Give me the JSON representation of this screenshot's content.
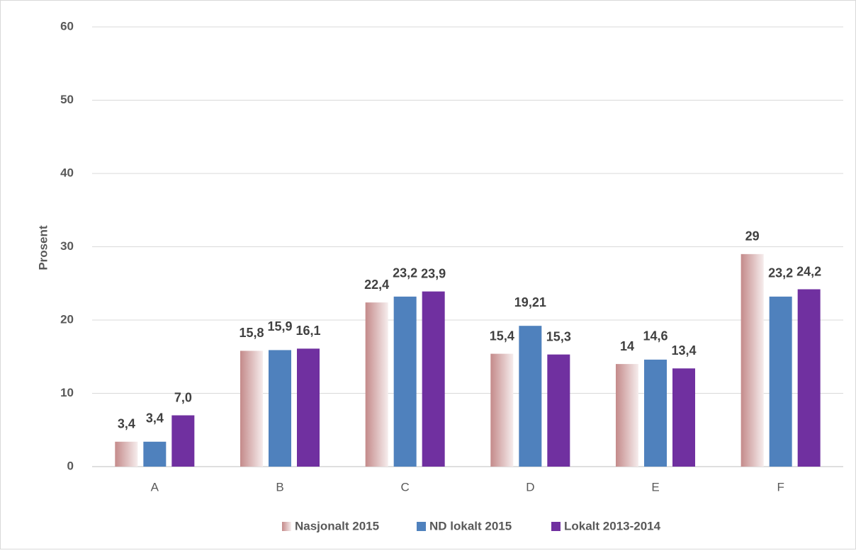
{
  "chart_data": {
    "type": "bar",
    "y_label": "Prosent",
    "categories": [
      "A",
      "B",
      "C",
      "D",
      "E",
      "F"
    ],
    "series": [
      {
        "name": "Nasjonalt 2015",
        "color": "#c48a8a",
        "values": [
          3.4,
          15.8,
          22.4,
          15.4,
          14,
          29
        ],
        "value_labels": [
          "3,4",
          "15,8",
          "22,4",
          "15,4",
          "14",
          "29"
        ]
      },
      {
        "name": "ND lokalt 2015",
        "color": "#4f81bd",
        "values": [
          3.4,
          15.9,
          23.2,
          19.21,
          14.6,
          23.2
        ],
        "value_labels": [
          "3,4",
          "15,9",
          "23,2",
          "19,21",
          "14,6",
          "23,2"
        ]
      },
      {
        "name": "Lokalt 2013-2014",
        "color": "#7030a0",
        "values": [
          7.0,
          16.1,
          23.9,
          15.3,
          13.4,
          24.2
        ],
        "value_labels": [
          "7,0",
          "16,1",
          "23,9",
          "15,3",
          "13,4",
          "24,2"
        ]
      }
    ],
    "ylim": [
      0,
      60
    ],
    "yticks": [
      0,
      10,
      20,
      30,
      40,
      50,
      60
    ],
    "grid": true,
    "legend": "bottom"
  }
}
